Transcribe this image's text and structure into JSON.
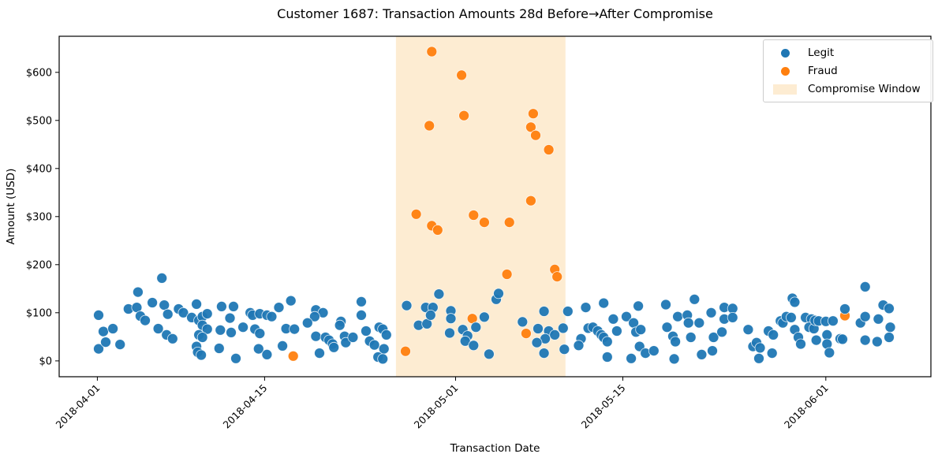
{
  "title": "Customer 1687: Transaction Amounts 28d Before→After Compromise",
  "legend": {
    "legit_label": "Legit",
    "fraud_label": "Fraud",
    "window_label": "Compromise Window"
  },
  "colors": {
    "legit": "#1f77b4",
    "fraud": "#ff7f0e",
    "window": "#fdecd2",
    "axis": "#000000"
  },
  "chart_data": {
    "type": "scatter",
    "title": "Customer 1687: Transaction Amounts 28d Before→After Compromise",
    "xlabel": "Transaction Date",
    "ylabel": "Amount (USD)",
    "x_unit": "days_since_2018-04-01",
    "xlim": [
      -3.2,
      69.8
    ],
    "ylim": [
      -33,
      675
    ],
    "grid": false,
    "legend_position": "upper right",
    "x_ticks": [
      {
        "day": 0,
        "label": "2018-04-01"
      },
      {
        "day": 14,
        "label": "2018-04-15"
      },
      {
        "day": 30,
        "label": "2018-05-01"
      },
      {
        "day": 44,
        "label": "2018-05-15"
      },
      {
        "day": 61,
        "label": "2018-06-01"
      }
    ],
    "y_ticks": [
      {
        "value": 0,
        "label": "$0"
      },
      {
        "value": 100,
        "label": "$100"
      },
      {
        "value": 200,
        "label": "$200"
      },
      {
        "value": 300,
        "label": "$300"
      },
      {
        "value": 400,
        "label": "$400"
      },
      {
        "value": 500,
        "label": "$500"
      },
      {
        "value": 600,
        "label": "$600"
      }
    ],
    "compromise_window": {
      "start_day": 25.0,
      "end_day": 39.2,
      "start_date": "2018-04-26",
      "end_date": "2018-05-10"
    },
    "series": [
      {
        "name": "Legit",
        "color_key": "legit",
        "points": [
          [
            0.1,
            95
          ],
          [
            0.5,
            61
          ],
          [
            0.1,
            25
          ],
          [
            0.7,
            39
          ],
          [
            1.3,
            67
          ],
          [
            1.9,
            34
          ],
          [
            2.6,
            108
          ],
          [
            3.4,
            143
          ],
          [
            3.3,
            111
          ],
          [
            3.6,
            93
          ],
          [
            4.0,
            84
          ],
          [
            4.6,
            121
          ],
          [
            5.4,
            172
          ],
          [
            5.6,
            116
          ],
          [
            5.9,
            97
          ],
          [
            5.1,
            67
          ],
          [
            5.8,
            54
          ],
          [
            6.3,
            46
          ],
          [
            6.8,
            108
          ],
          [
            7.2,
            100
          ],
          [
            8.3,
            118
          ],
          [
            7.9,
            90
          ],
          [
            8.5,
            84
          ],
          [
            8.8,
            92
          ],
          [
            9.2,
            98
          ],
          [
            8.8,
            74
          ],
          [
            9.2,
            66
          ],
          [
            8.5,
            54
          ],
          [
            8.8,
            49
          ],
          [
            8.3,
            30
          ],
          [
            8.4,
            18
          ],
          [
            8.7,
            12
          ],
          [
            10.4,
            113
          ],
          [
            11.4,
            113
          ],
          [
            11.1,
            89
          ],
          [
            10.3,
            64
          ],
          [
            11.2,
            59
          ],
          [
            10.2,
            26
          ],
          [
            11.6,
            5
          ],
          [
            12.2,
            70
          ],
          [
            12.8,
            100
          ],
          [
            13.0,
            95
          ],
          [
            13.6,
            98
          ],
          [
            14.2,
            95
          ],
          [
            14.6,
            92
          ],
          [
            13.2,
            66
          ],
          [
            13.6,
            57
          ],
          [
            15.2,
            111
          ],
          [
            16.2,
            125
          ],
          [
            15.5,
            31
          ],
          [
            13.5,
            25
          ],
          [
            14.2,
            13
          ],
          [
            15.8,
            67
          ],
          [
            16.5,
            66
          ],
          [
            18.3,
            106
          ],
          [
            18.9,
            100
          ],
          [
            18.2,
            92
          ],
          [
            17.6,
            79
          ],
          [
            18.3,
            51
          ],
          [
            19.1,
            49
          ],
          [
            19.4,
            43
          ],
          [
            19.7,
            35
          ],
          [
            19.8,
            28
          ],
          [
            18.6,
            16
          ],
          [
            20.4,
            82
          ],
          [
            20.3,
            74
          ],
          [
            20.7,
            51
          ],
          [
            20.8,
            38
          ],
          [
            21.4,
            49
          ],
          [
            22.1,
            123
          ],
          [
            22.1,
            95
          ],
          [
            22.5,
            62
          ],
          [
            22.8,
            41
          ],
          [
            23.2,
            33
          ],
          [
            23.6,
            70
          ],
          [
            23.9,
            66
          ],
          [
            24.2,
            54
          ],
          [
            24.0,
            25
          ],
          [
            23.5,
            8
          ],
          [
            23.9,
            4
          ],
          [
            25.9,
            115
          ],
          [
            26.9,
            74
          ],
          [
            27.6,
            77
          ],
          [
            27.5,
            111
          ],
          [
            28.1,
            111
          ],
          [
            28.6,
            139
          ],
          [
            27.9,
            95
          ],
          [
            29.6,
            104
          ],
          [
            29.6,
            88
          ],
          [
            29.5,
            58
          ],
          [
            30.6,
            65
          ],
          [
            31.0,
            52
          ],
          [
            30.8,
            41
          ],
          [
            31.5,
            32
          ],
          [
            31.7,
            70
          ],
          [
            32.4,
            91
          ],
          [
            32.8,
            14
          ],
          [
            33.4,
            128
          ],
          [
            33.6,
            140
          ],
          [
            35.6,
            81
          ],
          [
            36.9,
            67
          ],
          [
            37.4,
            103
          ],
          [
            37.8,
            62
          ],
          [
            37.5,
            46
          ],
          [
            36.8,
            38
          ],
          [
            38.3,
            54
          ],
          [
            39.0,
            68
          ],
          [
            39.1,
            24
          ],
          [
            37.4,
            16
          ],
          [
            39.4,
            103
          ],
          [
            40.9,
            111
          ],
          [
            42.4,
            120
          ],
          [
            41.1,
            68
          ],
          [
            41.5,
            70
          ],
          [
            41.9,
            62
          ],
          [
            42.2,
            54
          ],
          [
            42.4,
            49
          ],
          [
            42.7,
            40
          ],
          [
            40.5,
            46
          ],
          [
            40.3,
            32
          ],
          [
            42.7,
            8
          ],
          [
            43.2,
            87
          ],
          [
            43.5,
            62
          ],
          [
            44.3,
            92
          ],
          [
            45.3,
            114
          ],
          [
            44.9,
            79
          ],
          [
            45.1,
            60
          ],
          [
            45.5,
            65
          ],
          [
            45.4,
            30
          ],
          [
            45.9,
            16
          ],
          [
            46.6,
            21
          ],
          [
            44.7,
            5
          ],
          [
            47.6,
            117
          ],
          [
            47.7,
            70
          ],
          [
            48.2,
            51
          ],
          [
            48.4,
            40
          ],
          [
            48.6,
            92
          ],
          [
            49.4,
            95
          ],
          [
            49.5,
            79
          ],
          [
            49.7,
            49
          ],
          [
            50.0,
            128
          ],
          [
            50.4,
            79
          ],
          [
            50.6,
            13
          ],
          [
            51.5,
            21
          ],
          [
            51.4,
            100
          ],
          [
            51.6,
            49
          ],
          [
            52.5,
            111
          ],
          [
            53.2,
            109
          ],
          [
            52.5,
            87
          ],
          [
            53.2,
            90
          ],
          [
            52.3,
            60
          ],
          [
            48.3,
            4
          ],
          [
            54.5,
            65
          ],
          [
            54.9,
            30
          ],
          [
            55.2,
            38
          ],
          [
            55.5,
            27
          ],
          [
            56.2,
            62
          ],
          [
            56.6,
            54
          ],
          [
            56.5,
            16
          ],
          [
            55.4,
            5
          ],
          [
            57.2,
            83
          ],
          [
            57.4,
            79
          ],
          [
            57.7,
            92
          ],
          [
            58.1,
            90
          ],
          [
            58.2,
            130
          ],
          [
            58.4,
            122
          ],
          [
            58.4,
            65
          ],
          [
            58.7,
            49
          ],
          [
            58.9,
            35
          ],
          [
            59.3,
            90
          ],
          [
            59.8,
            87
          ],
          [
            59.6,
            70
          ],
          [
            60.0,
            67
          ],
          [
            60.1,
            84
          ],
          [
            60.4,
            83
          ],
          [
            61.0,
            82
          ],
          [
            61.6,
            83
          ],
          [
            60.2,
            43
          ],
          [
            61.1,
            54
          ],
          [
            61.1,
            35
          ],
          [
            61.3,
            17
          ],
          [
            62.2,
            46
          ],
          [
            62.4,
            45
          ],
          [
            62.6,
            108
          ],
          [
            63.9,
            79
          ],
          [
            64.3,
            92
          ],
          [
            64.3,
            43
          ],
          [
            64.3,
            154
          ],
          [
            65.4,
            87
          ],
          [
            65.3,
            40
          ],
          [
            65.8,
            116
          ],
          [
            66.3,
            109
          ],
          [
            66.4,
            70
          ],
          [
            66.3,
            49
          ]
        ]
      },
      {
        "name": "Fraud",
        "color_key": "fraud",
        "points": [
          [
            16.4,
            10
          ],
          [
            25.8,
            20
          ],
          [
            26.7,
            305
          ],
          [
            27.8,
            489
          ],
          [
            28.0,
            643
          ],
          [
            28.0,
            281
          ],
          [
            28.5,
            272
          ],
          [
            30.5,
            594
          ],
          [
            30.7,
            510
          ],
          [
            31.4,
            88
          ],
          [
            31.5,
            303
          ],
          [
            32.4,
            288
          ],
          [
            34.3,
            180
          ],
          [
            34.5,
            288
          ],
          [
            35.9,
            57
          ],
          [
            36.3,
            333
          ],
          [
            36.5,
            514
          ],
          [
            36.3,
            486
          ],
          [
            36.7,
            469
          ],
          [
            37.8,
            439
          ],
          [
            38.3,
            190
          ],
          [
            38.5,
            175
          ],
          [
            62.6,
            94
          ]
        ]
      }
    ]
  }
}
